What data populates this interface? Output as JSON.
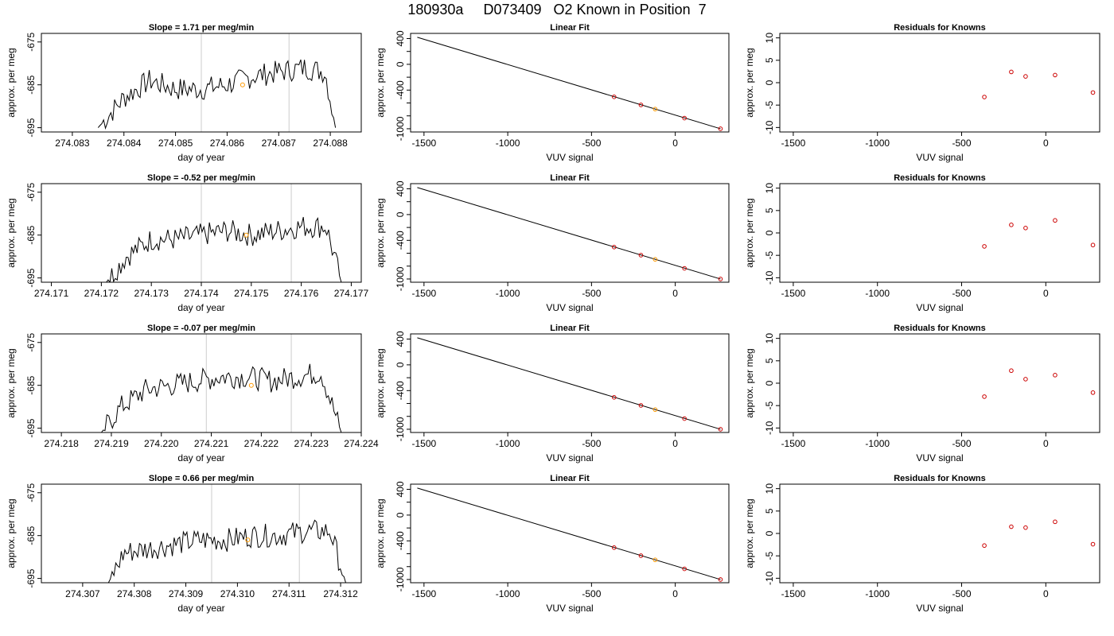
{
  "main_title": "180930a     D073409   O2 Known in Position  7",
  "colors": {
    "line": "#000000",
    "known_point": "#cc0000",
    "highlight_point": "#ff9900",
    "vline": "#cccccc",
    "fit_line": "#000000"
  },
  "common": {
    "ts_ylabel": "approx. per meg",
    "ts_xlabel": "day of year",
    "fit_title": "Linear Fit",
    "fit_ylabel": "approx. per meg",
    "fit_xlabel": "VUV signal",
    "res_title": "Residuals for Knowns",
    "res_ylabel": "approx. per meg",
    "res_xlabel": "VUV signal"
  },
  "rows": [
    {
      "slope_title": "Slope =  1.71  per meg/min",
      "ts_xticks": [
        "274.083",
        "274.084",
        "274.085",
        "274.086",
        "274.087",
        "274.088"
      ],
      "ts_yticks": [
        "-675",
        "-685",
        "-695"
      ],
      "res_points": [
        [
          -365,
          -3.2
        ],
        [
          -205,
          2.4
        ],
        [
          -120,
          1.4
        ],
        [
          55,
          1.7
        ],
        [
          280,
          -2.2
        ]
      ]
    },
    {
      "slope_title": "Slope =  -0.52  per meg/min",
      "ts_xticks": [
        "274.171",
        "274.172",
        "274.173",
        "274.174",
        "274.175",
        "274.176",
        "274.177"
      ],
      "ts_yticks": [
        "-675",
        "-685",
        "-695"
      ],
      "res_points": [
        [
          -365,
          -3.0
        ],
        [
          -205,
          1.8
        ],
        [
          -120,
          1.1
        ],
        [
          55,
          2.8
        ],
        [
          280,
          -2.7
        ]
      ]
    },
    {
      "slope_title": "Slope =  -0.07  per meg/min",
      "ts_xticks": [
        "274.218",
        "274.219",
        "274.220",
        "274.221",
        "274.222",
        "274.223",
        "274.224"
      ],
      "ts_yticks": [
        "-675",
        "-685",
        "-695"
      ],
      "res_points": [
        [
          -365,
          -3.0
        ],
        [
          -205,
          2.8
        ],
        [
          -120,
          0.9
        ],
        [
          55,
          1.8
        ],
        [
          280,
          -2.1
        ]
      ]
    },
    {
      "slope_title": "Slope =  0.66  per meg/min",
      "ts_xticks": [
        "274.307",
        "274.308",
        "274.309",
        "274.310",
        "274.311",
        "274.312"
      ],
      "ts_yticks": [
        "-675",
        "-685",
        "-695"
      ],
      "res_points": [
        [
          -365,
          -2.7
        ],
        [
          -205,
          1.5
        ],
        [
          -120,
          1.3
        ],
        [
          55,
          2.6
        ],
        [
          280,
          -2.4
        ]
      ]
    }
  ],
  "chart_data": [
    {
      "type": "line",
      "title": "Slope =  1.71  per meg/min",
      "xlabel": "day of year",
      "ylabel": "approx. per meg",
      "xlim": [
        274.0824,
        274.0886
      ],
      "ylim": [
        -696,
        -673
      ],
      "series": [
        {
          "x": [
            274.0835,
            274.084,
            274.0845,
            274.085,
            274.0855,
            274.086,
            274.0865,
            274.087,
            274.0875,
            274.0879,
            274.0881
          ],
          "values": [
            -695,
            -688,
            -684,
            -686,
            -686,
            -685,
            -683,
            -682,
            -681,
            -682,
            -695
          ]
        }
      ],
      "vertical_lines_x": [
        274.0855,
        274.0872
      ],
      "highlight_point": [
        274.0863,
        -685
      ]
    },
    {
      "type": "line",
      "title": "Slope =  -0.52  per meg/min",
      "xlabel": "day of year",
      "ylabel": "approx. per meg",
      "xlim": [
        274.1708,
        274.1772
      ],
      "ylim": [
        -696,
        -673
      ],
      "series": [
        {
          "x": [
            274.1721,
            274.1725,
            274.173,
            274.1735,
            274.174,
            274.1745,
            274.175,
            274.1755,
            274.176,
            274.1765,
            274.1768
          ],
          "values": [
            -696,
            -690,
            -686,
            -686,
            -685,
            -684,
            -685,
            -684,
            -683,
            -683,
            -696
          ]
        }
      ],
      "vertical_lines_x": [
        274.174,
        274.1758
      ],
      "highlight_point": [
        274.1749,
        -685
      ]
    },
    {
      "type": "line",
      "title": "Slope =  -0.07  per meg/min",
      "xlabel": "day of year",
      "ylabel": "approx. per meg",
      "xlim": [
        274.2176,
        274.224
      ],
      "ylim": [
        -696,
        -673
      ],
      "series": [
        {
          "x": [
            274.2188,
            274.2192,
            274.2197,
            274.2202,
            274.2207,
            274.2212,
            274.2217,
            274.2222,
            274.2227,
            274.2232,
            274.2236
          ],
          "values": [
            -696,
            -690,
            -686,
            -685,
            -684,
            -683,
            -683,
            -684,
            -683,
            -682,
            -696
          ]
        }
      ],
      "vertical_lines_x": [
        274.2209,
        274.2226
      ],
      "highlight_point": [
        274.2218,
        -685
      ]
    },
    {
      "type": "line",
      "title": "Slope =  0.66  per meg/min",
      "xlabel": "day of year",
      "ylabel": "approx. per meg",
      "xlim": [
        274.3062,
        274.3124
      ],
      "ylim": [
        -696,
        -673
      ],
      "series": [
        {
          "x": [
            274.3075,
            274.3078,
            274.3083,
            274.3088,
            274.3093,
            274.3098,
            274.3103,
            274.3108,
            274.3113,
            274.3118,
            274.3121
          ],
          "values": [
            -696,
            -689,
            -688,
            -687,
            -686,
            -686,
            -685,
            -685,
            -684,
            -684,
            -696
          ]
        }
      ],
      "vertical_lines_x": [
        274.3095,
        274.3112
      ],
      "highlight_point": [
        274.3102,
        -686
      ]
    },
    {
      "type": "scatter",
      "title": "Linear Fit",
      "xlabel": "VUV signal",
      "ylabel": "approx. per meg",
      "xlim": [
        -1580,
        320
      ],
      "ylim": [
        -1050,
        480
      ],
      "x_ticks": [
        -1500,
        -1000,
        -500,
        0
      ],
      "y_ticks": [
        400,
        0,
        -400,
        -1000
      ],
      "fit_line": [
        [
          -1540,
          420
        ],
        [
          270,
          -1000
        ]
      ],
      "points": [
        [
          -365,
          -505
        ],
        [
          -205,
          -630
        ],
        [
          -120,
          -695
        ],
        [
          55,
          -835
        ],
        [
          270,
          -1000
        ]
      ],
      "highlight_index": 2,
      "note": "identical Linear Fit panel repeated in all four rows"
    },
    {
      "type": "scatter",
      "title": "Residuals for Knowns",
      "xlabel": "VUV signal",
      "ylabel": "approx. per meg",
      "xlim": [
        -1580,
        320
      ],
      "ylim": [
        -11,
        11
      ],
      "x_ticks": [
        -1500,
        -1000,
        -500,
        0
      ],
      "y_ticks": [
        10,
        5,
        0,
        -5,
        -10
      ],
      "series": [
        {
          "values": [
            [
              -365,
              -3.2
            ],
            [
              -205,
              2.4
            ],
            [
              -120,
              1.4
            ],
            [
              55,
              1.7
            ],
            [
              280,
              -2.2
            ]
          ]
        },
        {
          "values": [
            [
              -365,
              -3.0
            ],
            [
              -205,
              1.8
            ],
            [
              -120,
              1.1
            ],
            [
              55,
              2.8
            ],
            [
              280,
              -2.7
            ]
          ]
        },
        {
          "values": [
            [
              -365,
              -3.0
            ],
            [
              -205,
              2.8
            ],
            [
              -120,
              0.9
            ],
            [
              55,
              1.8
            ],
            [
              280,
              -2.1
            ]
          ]
        },
        {
          "values": [
            [
              -365,
              -2.7
            ],
            [
              -205,
              1.5
            ],
            [
              -120,
              1.3
            ],
            [
              55,
              2.6
            ],
            [
              280,
              -2.4
            ]
          ]
        }
      ]
    }
  ]
}
